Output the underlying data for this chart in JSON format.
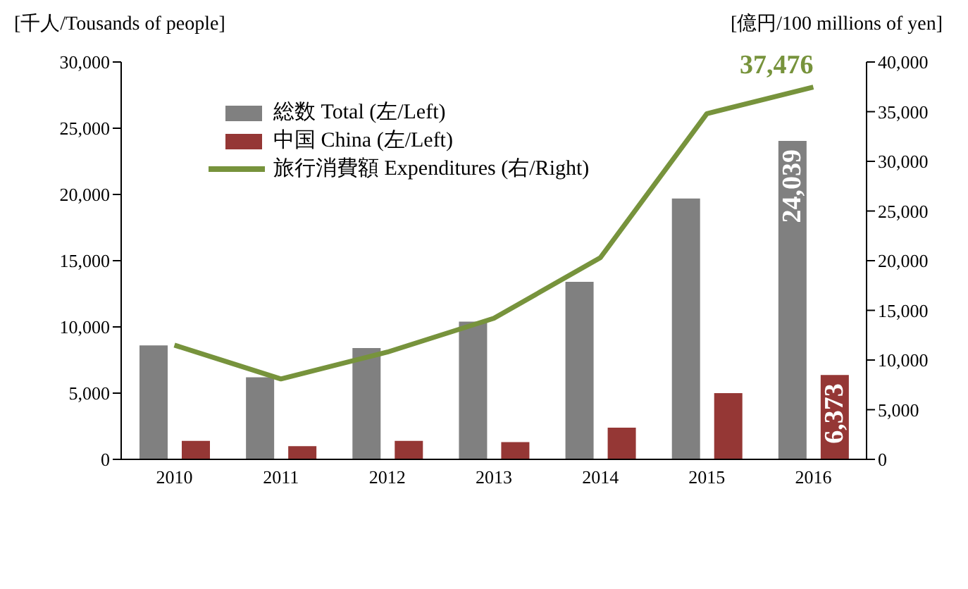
{
  "chart_data": {
    "type": "bar",
    "ylabel": "[千人/Tousands of people]",
    "y2label": "[億円/100 millions of yen]",
    "categories": [
      "2010",
      "2011",
      "2012",
      "2013",
      "2014",
      "2015",
      "2016"
    ],
    "series": [
      {
        "name": "総数 Total (左/Left)",
        "color": "#808080",
        "values": [
          8600,
          6200,
          8400,
          10400,
          13400,
          19700,
          24039
        ],
        "value_labels": [
          null,
          null,
          null,
          null,
          null,
          null,
          "24,039"
        ]
      },
      {
        "name": "中国 China (左/Left)",
        "color": "#953735",
        "values": [
          1400,
          1000,
          1400,
          1300,
          2400,
          5000,
          6373
        ],
        "value_labels": [
          null,
          null,
          null,
          null,
          null,
          null,
          "6,373"
        ]
      },
      {
        "name": "旅行消費額 Expenditures (右/Right)",
        "type": "line",
        "axis": "y2",
        "color": "#77933c",
        "values": [
          11500,
          8100,
          10800,
          14200,
          20300,
          34800,
          37476
        ],
        "value_labels": [
          null,
          null,
          null,
          null,
          null,
          null,
          "37,476"
        ]
      }
    ],
    "ylim": [
      0,
      30000
    ],
    "yticks": [
      0,
      {
        "value": 5000,
        "label": "5,000"
      },
      {
        "value": 10000,
        "label": "10,000"
      },
      {
        "value": 15000,
        "label": "15,000"
      },
      {
        "value": 20000,
        "label": "20,000"
      },
      {
        "value": 25000,
        "label": "25,000"
      },
      {
        "value": 30000,
        "label": "30,000"
      }
    ],
    "y2lim": [
      0,
      40000
    ],
    "y2ticks": [
      0,
      {
        "value": 5000,
        "label": "5,000"
      },
      {
        "value": 10000,
        "label": "10,000"
      },
      {
        "value": 15000,
        "label": "15,000"
      },
      {
        "value": 20000,
        "label": "20,000"
      },
      {
        "value": 25000,
        "label": "25,000"
      },
      {
        "value": 30000,
        "label": "30,000"
      },
      {
        "value": 35000,
        "label": "35,000"
      },
      {
        "value": 40000,
        "label": "40,000"
      }
    ],
    "legend": "top left",
    "grid": false,
    "marker": "none",
    "line_style": "solid"
  }
}
